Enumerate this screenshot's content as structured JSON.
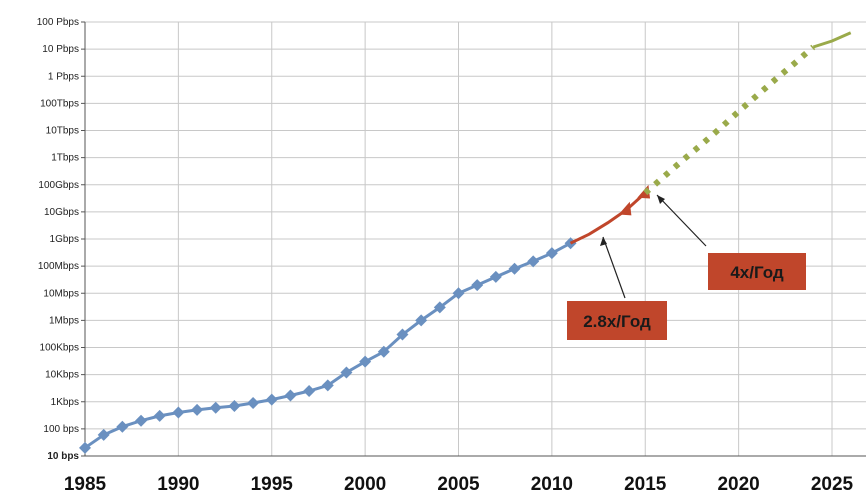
{
  "chart_data": {
    "type": "line",
    "title": "",
    "xlabel": "",
    "ylabel": "",
    "y_scale": "log10",
    "y_unit": "bps",
    "ylim": [
      10,
      1e+17
    ],
    "xlim": [
      1985,
      2026
    ],
    "grid": true,
    "x_ticks": [
      1985,
      1990,
      1995,
      2000,
      2005,
      2010,
      2015,
      2020,
      2025
    ],
    "x_tick_labels": [
      "1985",
      "1990",
      "1995",
      "2000",
      "2005",
      "2010",
      "2015",
      "2020",
      "2025"
    ],
    "y_ticks": [
      {
        "value": 10,
        "label": "10 bps"
      },
      {
        "value": 100,
        "label": "100 bps"
      },
      {
        "value": 1000,
        "label": "1Kbps"
      },
      {
        "value": 10000,
        "label": "10Kbps"
      },
      {
        "value": 100000,
        "label": "100Kbps"
      },
      {
        "value": 1000000,
        "label": "1Mbps"
      },
      {
        "value": 10000000,
        "label": "10Mbps"
      },
      {
        "value": 100000000,
        "label": "100Mbps"
      },
      {
        "value": 1000000000,
        "label": "1Gbps"
      },
      {
        "value": 10000000000,
        "label": "10Gbps"
      },
      {
        "value": 100000000000,
        "label": "100Gbps"
      },
      {
        "value": 1000000000000,
        "label": "1Tbps"
      },
      {
        "value": 10000000000000,
        "label": "10Tbps"
      },
      {
        "value": 100000000000000,
        "label": "100Tbps"
      },
      {
        "value": 1000000000000000,
        "label": "1 Pbps"
      },
      {
        "value": 10000000000000000,
        "label": "10 Pbps"
      },
      {
        "value": 100000000000000000,
        "label": "100 Pbps"
      }
    ],
    "series": [
      {
        "color": "#6a90c0",
        "style": "solid-with-diamond-markers",
        "x": [
          1985,
          1986,
          1987,
          1988,
          1989,
          1990,
          1991,
          1992,
          1993,
          1994,
          1995,
          1996,
          1997,
          1998,
          1999,
          2000,
          2001,
          2002,
          2003,
          2004,
          2005,
          2006,
          2007,
          2008,
          2009,
          2010,
          2011
        ],
        "y": [
          20,
          60,
          120,
          200,
          300,
          400,
          500,
          600,
          700,
          900,
          1200,
          1700,
          2500,
          4000,
          12000,
          30000,
          70000,
          300000,
          1000000,
          3000000,
          10000000,
          20000000,
          40000000,
          80000000,
          150000000,
          300000000,
          700000000
        ]
      },
      {
        "color": "#c0462b",
        "style": "solid-with-triangle-markers",
        "x": [
          2011,
          2012,
          2013,
          2014,
          2015
        ],
        "y": [
          700000000,
          1500000000,
          4000000000,
          12000000000,
          50000000000
        ]
      },
      {
        "color": "#9aaa4a",
        "style": "dotted-then-solid",
        "x": [
          2015,
          2016,
          2017,
          2018,
          2019,
          2020,
          2021,
          2022,
          2023,
          2024,
          2025,
          2026
        ],
        "y": [
          50000000000,
          200000000000,
          800000000000,
          3000000000000,
          12000000000000,
          50000000000000,
          200000000000000,
          800000000000000,
          3000000000000000,
          12000000000000000,
          20000000000000000,
          40000000000000000
        ]
      }
    ],
    "annotations": [
      {
        "text": "2.8x/Год",
        "box_color": "#c0462b",
        "points_to": {
          "x": 2013,
          "y": 3000000000
        }
      },
      {
        "text": "4x/Год",
        "box_color": "#c0462b",
        "points_to": {
          "x": 2015,
          "y": 50000000000
        }
      }
    ]
  }
}
